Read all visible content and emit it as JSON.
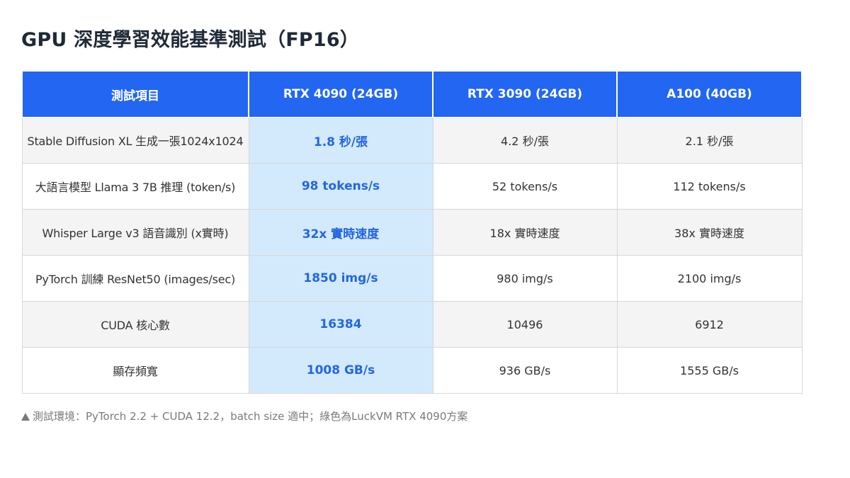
{
  "title": "GPU 深度學習效能基準測試（FP16）",
  "table": {
    "headers": [
      "測試項目",
      "RTX 4090 (24GB)",
      "RTX 3090 (24GB)",
      "A100 (40GB)"
    ],
    "rows": [
      [
        "Stable Diffusion XL 生成一張1024x1024",
        "1.8 秒/張",
        "4.2 秒/張",
        "2.1 秒/張"
      ],
      [
        "大語言模型 Llama 3 7B 推理 (token/s)",
        "98 tokens/s",
        "52 tokens/s",
        "112 tokens/s"
      ],
      [
        "Whisper Large v3 語音識別 (x實時)",
        "32x 實時速度",
        "18x 實時速度",
        "38x 實時速度"
      ],
      [
        "PyTorch 訓練 ResNet50 (images/sec)",
        "1850 img/s",
        "980 img/s",
        "2100 img/s"
      ],
      [
        "CUDA 核心數",
        "16384",
        "10496",
        "6912"
      ],
      [
        "顯存頻寬",
        "1008 GB/s",
        "936 GB/s",
        "1555 GB/s"
      ]
    ],
    "highlight_column": 1
  },
  "footnote": {
    "icon": "triangle-up-icon",
    "text": "測試環境：PyTorch 2.2 + CUDA 12.2，batch size 適中；綠色為LuckVM RTX 4090方案"
  },
  "colors": {
    "header_bg": "#2266f2",
    "header_text": "#ffffff",
    "highlight_bg": "#d3eafd",
    "highlight_text": "#2366e0",
    "row_alt_bg": "#f4f4f4",
    "border": "#d7d7d7",
    "footnote_text": "#7a7a7a",
    "title_text": "#1f2937"
  }
}
